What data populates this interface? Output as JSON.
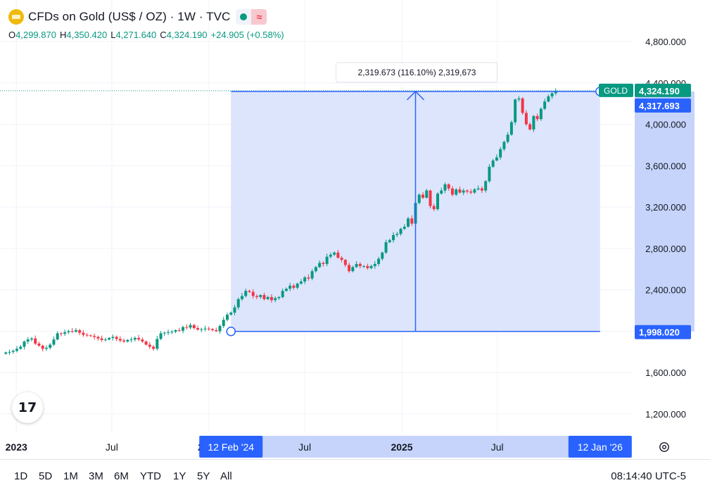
{
  "header": {
    "title": "CFDs on Gold (US$ / OZ) · 1W · TVC",
    "wave_icon": "≈",
    "ohlc": {
      "o_label": "O",
      "o_value": "4,299.870",
      "h_label": "H",
      "h_value": "4,350.420",
      "l_label": "L",
      "l_value": "4,271.640",
      "c_label": "C",
      "c_value": "4,324.190",
      "change": "+24.905 (+0.58%)"
    }
  },
  "footer": {
    "ranges": [
      "1D",
      "5D",
      "1M",
      "3M",
      "6M",
      "YTD",
      "1Y",
      "5Y",
      "All"
    ],
    "clock": "08:14:40 UTC-5"
  },
  "logo_text": "17",
  "colors": {
    "up": "#089981",
    "down": "#f23645",
    "accent": "#2962ff",
    "measure_fill": "#dbe4fd",
    "gold_label": "#089981",
    "gold_icon": "#f0b90b"
  },
  "chart_data": {
    "type": "candlestick",
    "timeframe": "1W",
    "symbol": "GOLD",
    "ylim": [
      1000,
      5000
    ],
    "y_ticks": [
      1200,
      1600,
      2000,
      2400,
      2800,
      3200,
      3600,
      4000,
      4400,
      4800
    ],
    "y_tick_labels": [
      "1,200.000",
      "1,600.000",
      "2,000.000",
      "2,400.000",
      "2,800.000",
      "3,200.000",
      "3,600.000",
      "4,000.000",
      "4,400.000",
      "4,800.000"
    ],
    "x_range": [
      "2022-12-01",
      "2026-03-16"
    ],
    "x_ticks": [
      {
        "date": "2023-01-01",
        "label": "2023",
        "bold": true
      },
      {
        "date": "2023-07-01",
        "label": "Jul",
        "bold": false
      },
      {
        "date": "2024-01-01",
        "label": "2024",
        "bold": true
      },
      {
        "date": "2024-07-01",
        "label": "Jul",
        "bold": false
      },
      {
        "date": "2025-01-01",
        "label": "2025",
        "bold": true
      },
      {
        "date": "2025-07-01",
        "label": "Jul",
        "bold": false
      }
    ],
    "current_price": 4324.19,
    "current_price_label": "4,324.190",
    "series_label": "GOLD",
    "measure": {
      "start_date": "2024-02-12",
      "end_date": "2026-01-12",
      "start_price": 1998.02,
      "end_price": 4317.693,
      "start_label": "12 Feb '24",
      "end_label": "12 Jan '26",
      "start_price_label": "1,998.020",
      "end_price_label": "4,317.693",
      "tooltip": "2,319.673 (116.10%) 2,319,673"
    },
    "weekly_closes": [
      1795,
      1800,
      1810,
      1830,
      1850,
      1900,
      1920,
      1930,
      1880,
      1860,
      1830,
      1840,
      1870,
      1920,
      1980,
      1975,
      1990,
      2000,
      1995,
      2010,
      1985,
      1965,
      1960,
      1955,
      1945,
      1930,
      1915,
      1920,
      1935,
      1945,
      1925,
      1910,
      1900,
      1915,
      1920,
      1935,
      1920,
      1900,
      1870,
      1850,
      1830,
      1925,
      1980,
      1985,
      1990,
      1995,
      2010,
      2005,
      2040,
      2035,
      2060,
      2030,
      2015,
      2020,
      2025,
      2020,
      2010,
      2000,
      2050,
      2110,
      2160,
      2180,
      2230,
      2310,
      2340,
      2390,
      2380,
      2340,
      2330,
      2350,
      2310,
      2330,
      2300,
      2320,
      2330,
      2390,
      2410,
      2440,
      2420,
      2460,
      2480,
      2520,
      2510,
      2580,
      2620,
      2660,
      2650,
      2720,
      2740,
      2760,
      2710,
      2690,
      2640,
      2580,
      2620,
      2650,
      2630,
      2630,
      2610,
      2630,
      2650,
      2700,
      2760,
      2860,
      2880,
      2930,
      2940,
      2990,
      3010,
      3090,
      3040,
      3240,
      3320,
      3290,
      3360,
      3210,
      3180,
      3330,
      3360,
      3420,
      3380,
      3320,
      3370,
      3340,
      3360,
      3350,
      3340,
      3370,
      3380,
      3360,
      3450,
      3590,
      3650,
      3680,
      3760,
      3830,
      3900,
      4020,
      4240,
      4250,
      4110,
      4000,
      3950,
      4080,
      4050,
      4150,
      4220,
      4270,
      4300,
      4324
    ]
  }
}
